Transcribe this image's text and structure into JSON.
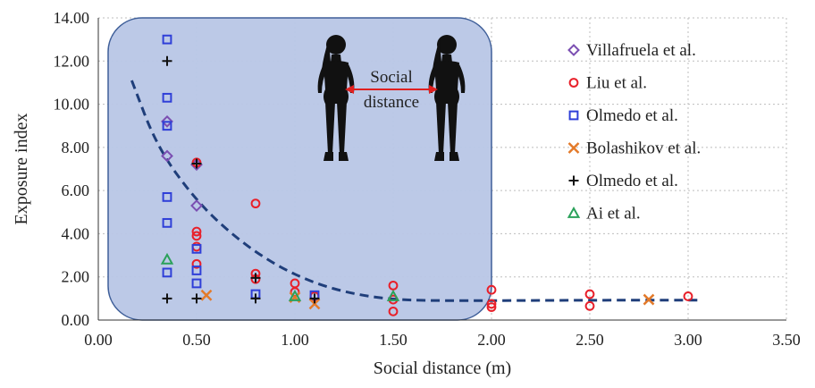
{
  "chart_data": {
    "type": "scatter",
    "xlabel": "Social distance (m)",
    "ylabel": "Exposure index",
    "xlim": [
      0,
      3.5
    ],
    "ylim": [
      0,
      14
    ],
    "x_ticks": [
      "0.00",
      "0.50",
      "1.00",
      "1.50",
      "2.00",
      "2.50",
      "3.00",
      "3.50"
    ],
    "y_ticks": [
      "0.00",
      "2.00",
      "4.00",
      "6.00",
      "8.00",
      "10.00",
      "12.00",
      "14.00"
    ],
    "grid": "dotted vertical and horizontal",
    "legend_position": "right",
    "callout": {
      "lines": [
        "Social",
        "distance"
      ],
      "region_x": [
        0.05,
        2.0
      ],
      "region_y": [
        0,
        14
      ],
      "fill": "#b8c6e6",
      "border": "#3f5f99",
      "arrow_color": "#e02020",
      "silhouette_color": "#111111"
    },
    "series": [
      {
        "name": "Villafruela et al.",
        "marker": "diamond",
        "color": "#7b4fb2",
        "points": [
          [
            0.35,
            9.2
          ],
          [
            0.35,
            7.6
          ],
          [
            0.5,
            7.2
          ],
          [
            0.5,
            5.3
          ]
        ]
      },
      {
        "name": "Liu et al.",
        "marker": "circle",
        "color": "#e8202a",
        "points": [
          [
            0.5,
            7.3
          ],
          [
            0.5,
            4.1
          ],
          [
            0.5,
            3.9
          ],
          [
            0.5,
            3.4
          ],
          [
            0.5,
            2.6
          ],
          [
            0.8,
            5.4
          ],
          [
            0.8,
            2.15
          ],
          [
            0.8,
            1.9
          ],
          [
            1.0,
            1.7
          ],
          [
            1.0,
            1.3
          ],
          [
            1.1,
            1.1
          ],
          [
            1.5,
            1.6
          ],
          [
            1.5,
            0.95
          ],
          [
            1.5,
            0.4
          ],
          [
            2.0,
            1.4
          ],
          [
            2.0,
            0.75
          ],
          [
            2.0,
            0.6
          ],
          [
            2.5,
            1.2
          ],
          [
            2.5,
            0.65
          ],
          [
            3.0,
            1.1
          ]
        ]
      },
      {
        "name": "Olmedo et al.",
        "marker": "square",
        "color": "#2f3fd8",
        "points": [
          [
            0.35,
            13.0
          ],
          [
            0.35,
            10.3
          ],
          [
            0.35,
            9.0
          ],
          [
            0.35,
            5.7
          ],
          [
            0.35,
            4.5
          ],
          [
            0.35,
            2.2
          ],
          [
            0.5,
            3.3
          ],
          [
            0.5,
            2.3
          ],
          [
            0.5,
            1.7
          ],
          [
            0.8,
            1.2
          ],
          [
            1.1,
            1.15
          ]
        ]
      },
      {
        "name": "Bolashikov et al.",
        "marker": "x",
        "color": "#e37a2a",
        "points": [
          [
            0.55,
            1.15
          ],
          [
            1.0,
            1.05
          ],
          [
            1.1,
            0.75
          ],
          [
            2.8,
            0.95
          ]
        ]
      },
      {
        "name": "Olmedo et al.",
        "marker": "plus",
        "color": "#111111",
        "points": [
          [
            0.35,
            12.0
          ],
          [
            0.35,
            1.0
          ],
          [
            0.5,
            7.25
          ],
          [
            0.5,
            1.0
          ],
          [
            0.8,
            1.95
          ],
          [
            0.8,
            1.0
          ],
          [
            1.1,
            1.0
          ]
        ]
      },
      {
        "name": "Ai et al.",
        "marker": "triangle",
        "color": "#2aa15a",
        "points": [
          [
            0.35,
            2.8
          ],
          [
            1.0,
            1.1
          ],
          [
            1.5,
            1.1
          ]
        ]
      }
    ],
    "trendline": {
      "style": "dashed",
      "color": "#1f3e7a",
      "points": [
        [
          0.17,
          11.1
        ],
        [
          0.3,
          8.0
        ],
        [
          0.5,
          5.5
        ],
        [
          0.7,
          3.8
        ],
        [
          0.9,
          2.55
        ],
        [
          1.1,
          1.7
        ],
        [
          1.3,
          1.2
        ],
        [
          1.5,
          0.95
        ],
        [
          1.7,
          0.9
        ],
        [
          2.0,
          0.9
        ],
        [
          2.5,
          0.92
        ],
        [
          3.05,
          0.92
        ]
      ]
    }
  }
}
